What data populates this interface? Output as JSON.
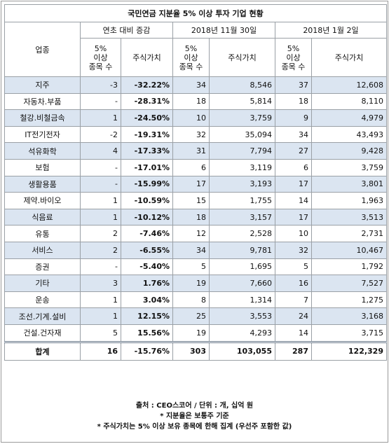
{
  "title": "국민연금 지분율 5% 이상 투자 기업 현황",
  "headers": {
    "sector": "업종",
    "group_change": "연초 대비 증감",
    "group_nov": "2018년 11월 30일",
    "group_jan": "2018년 1월 2일",
    "count_label": "5%\n이상\n종목 수",
    "value_label": "주식가치"
  },
  "rows": [
    {
      "sector": "지주",
      "chg_count": "-3",
      "chg_pct": "-32.22%",
      "nov_count": "34",
      "nov_value": "8,546",
      "jan_count": "37",
      "jan_value": "12,608"
    },
    {
      "sector": "자동차.부품",
      "chg_count": "-",
      "chg_pct": "-28.31%",
      "nov_count": "18",
      "nov_value": "5,814",
      "jan_count": "18",
      "jan_value": "8,110"
    },
    {
      "sector": "철강.비철금속",
      "chg_count": "1",
      "chg_pct": "-24.50%",
      "nov_count": "10",
      "nov_value": "3,759",
      "jan_count": "9",
      "jan_value": "4,979"
    },
    {
      "sector": "IT전기전자",
      "chg_count": "-2",
      "chg_pct": "-19.31%",
      "nov_count": "32",
      "nov_value": "35,094",
      "jan_count": "34",
      "jan_value": "43,493"
    },
    {
      "sector": "석유화학",
      "chg_count": "4",
      "chg_pct": "-17.33%",
      "nov_count": "31",
      "nov_value": "7,794",
      "jan_count": "27",
      "jan_value": "9,428"
    },
    {
      "sector": "보험",
      "chg_count": "-",
      "chg_pct": "-17.01%",
      "nov_count": "6",
      "nov_value": "3,119",
      "jan_count": "6",
      "jan_value": "3,759"
    },
    {
      "sector": "생활용품",
      "chg_count": "-",
      "chg_pct": "-15.99%",
      "nov_count": "17",
      "nov_value": "3,193",
      "jan_count": "17",
      "jan_value": "3,801"
    },
    {
      "sector": "제약.바이오",
      "chg_count": "1",
      "chg_pct": "-10.59%",
      "nov_count": "15",
      "nov_value": "1,755",
      "jan_count": "14",
      "jan_value": "1,963"
    },
    {
      "sector": "식음료",
      "chg_count": "1",
      "chg_pct": "-10.12%",
      "nov_count": "18",
      "nov_value": "3,157",
      "jan_count": "17",
      "jan_value": "3,513"
    },
    {
      "sector": "유통",
      "chg_count": "2",
      "chg_pct": "-7.46%",
      "nov_count": "12",
      "nov_value": "2,528",
      "jan_count": "10",
      "jan_value": "2,731"
    },
    {
      "sector": "서비스",
      "chg_count": "2",
      "chg_pct": "-6.55%",
      "nov_count": "34",
      "nov_value": "9,781",
      "jan_count": "32",
      "jan_value": "10,467"
    },
    {
      "sector": "증권",
      "chg_count": "-",
      "chg_pct": "-5.40%",
      "nov_count": "5",
      "nov_value": "1,695",
      "jan_count": "5",
      "jan_value": "1,792"
    },
    {
      "sector": "기타",
      "chg_count": "3",
      "chg_pct": "1.76%",
      "nov_count": "19",
      "nov_value": "7,660",
      "jan_count": "16",
      "jan_value": "7,527"
    },
    {
      "sector": "운송",
      "chg_count": "1",
      "chg_pct": "3.04%",
      "nov_count": "8",
      "nov_value": "1,314",
      "jan_count": "7",
      "jan_value": "1,275"
    },
    {
      "sector": "조선.기계.설비",
      "chg_count": "1",
      "chg_pct": "12.15%",
      "nov_count": "25",
      "nov_value": "3,553",
      "jan_count": "24",
      "jan_value": "3,168"
    },
    {
      "sector": "건설.건자재",
      "chg_count": "5",
      "chg_pct": "15.56%",
      "nov_count": "19",
      "nov_value": "4,293",
      "jan_count": "14",
      "jan_value": "3,715"
    }
  ],
  "total": {
    "sector": "합계",
    "chg_count": "16",
    "chg_pct": "-15.76%",
    "nov_count": "303",
    "nov_value": "103,055",
    "jan_count": "287",
    "jan_value": "122,329"
  },
  "notes": [
    "출처 : CEO스코어 / 단위 : 개, 십억 원",
    "* 지분율은 보통주 기준",
    "* 주식가치는 5% 이상 보유 종목에 한해 집계 (우선주 포함한 값)"
  ],
  "colors": {
    "row_shade": "#dbe5f1",
    "border": "#9aa0a6"
  }
}
